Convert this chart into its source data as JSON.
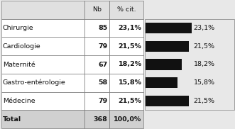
{
  "rows": [
    {
      "label": "Chirurgie",
      "nb": 85,
      "pct": 23.1
    },
    {
      "label": "Cardiologie",
      "nb": 79,
      "pct": 21.5
    },
    {
      "label": "Maternité",
      "nb": 67,
      "pct": 18.2
    },
    {
      "label": "Gastro-entérologie",
      "nb": 58,
      "pct": 15.8
    },
    {
      "label": "Médecine",
      "nb": 79,
      "pct": 21.5
    }
  ],
  "total": {
    "label": "Total",
    "nb": 368,
    "pct": 100.0
  },
  "col_headers": [
    "Nb",
    "% cit."
  ],
  "bar_max": 23.1,
  "bar_color": "#111111",
  "bg_color": "#e8e8e8",
  "table_bg": "#ffffff",
  "header_bg": "#e0e0e0",
  "total_bg": "#d0d0d0",
  "border_color": "#666666",
  "text_color": "#111111",
  "font_size": 6.8
}
